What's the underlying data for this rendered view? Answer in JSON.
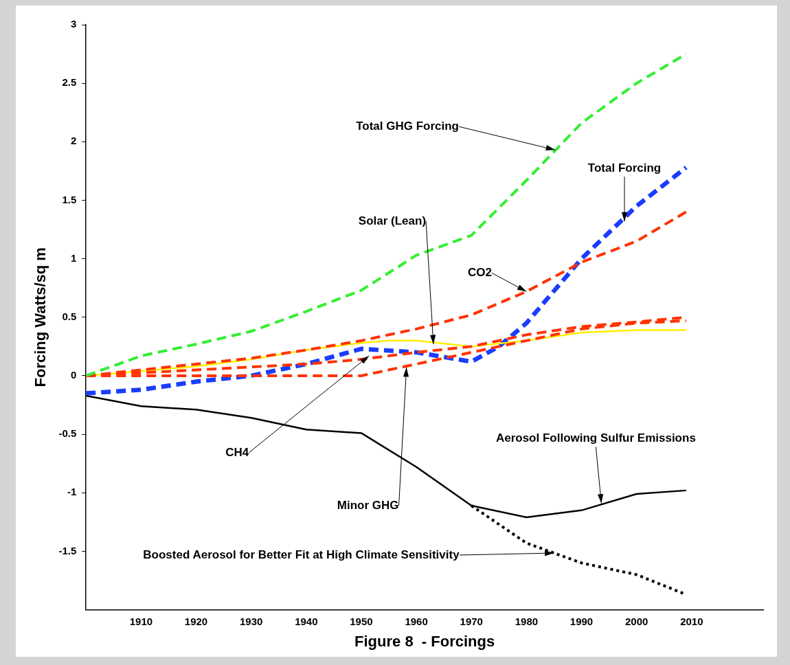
{
  "chart_data": {
    "type": "line",
    "xlabel": "Figure 8  - Forcings",
    "ylabel": "Forcing Watts/sq m",
    "xlim": [
      1900,
      2023
    ],
    "xticks": [
      1910,
      1920,
      1930,
      1940,
      1950,
      1960,
      1970,
      1980,
      1990,
      2000,
      2010
    ],
    "ylim": [
      -2,
      3
    ],
    "yticks": [
      -1.5,
      -1,
      -0.5,
      0,
      0.5,
      1,
      1.5,
      2,
      2.5,
      3
    ],
    "grid": false,
    "legend": false,
    "marker": "none",
    "series": [
      {
        "color": "#33ee33",
        "line_style": "dashed",
        "x": [
          1900,
          1910,
          1920,
          1930,
          1940,
          1950,
          1960,
          1970,
          1980,
          1990,
          2000,
          2009
        ],
        "values": [
          0,
          0.17,
          0.27,
          0.38,
          0.55,
          0.73,
          1.03,
          1.2,
          1.67,
          2.16,
          2.5,
          2.75
        ]
      },
      {
        "color": "#ff3300",
        "line_style": "dashed",
        "x": [
          1900,
          1910,
          1920,
          1930,
          1940,
          1950,
          1960,
          1970,
          1980,
          1990,
          2000,
          2009
        ],
        "values": [
          0,
          0.05,
          0.1,
          0.15,
          0.22,
          0.3,
          0.4,
          0.52,
          0.72,
          0.97,
          1.15,
          1.4
        ]
      },
      {
        "color": "#ff3300",
        "line_style": "dashed",
        "x": [
          1900,
          1920,
          1940,
          1950,
          1960,
          1970,
          1980,
          1990,
          2000,
          2009
        ],
        "values": [
          0,
          0.05,
          0.1,
          0.14,
          0.2,
          0.25,
          0.35,
          0.42,
          0.46,
          0.5
        ]
      },
      {
        "color": "#ff3300",
        "line_style": "dashed",
        "x": [
          1900,
          1950,
          1960,
          1970,
          1980,
          1990,
          2000,
          2009
        ],
        "values": [
          0,
          0,
          0.1,
          0.2,
          0.3,
          0.4,
          0.45,
          0.47
        ]
      },
      {
        "color": "#ffee00",
        "line_style": "solid",
        "x": [
          1900,
          1910,
          1920,
          1930,
          1940,
          1950,
          1955,
          1960,
          1970,
          1980,
          1990,
          2000,
          2009
        ],
        "values": [
          0,
          0.04,
          0.08,
          0.14,
          0.22,
          0.28,
          0.3,
          0.3,
          0.25,
          0.3,
          0.37,
          0.39,
          0.39
        ]
      },
      {
        "color": "#1a3cff",
        "line_style": "dashed",
        "x": [
          1900,
          1910,
          1920,
          1930,
          1940,
          1950,
          1960,
          1970,
          1975,
          1980,
          1990,
          2000,
          2009
        ],
        "values": [
          -0.15,
          -0.12,
          -0.05,
          0,
          0.1,
          0.23,
          0.2,
          0.12,
          0.25,
          0.45,
          1,
          1.45,
          1.78
        ]
      },
      {
        "color": "#000000",
        "line_style": "solid",
        "x": [
          1900,
          1910,
          1920,
          1930,
          1940,
          1950,
          1960,
          1970,
          1980,
          1990,
          2000,
          2009
        ],
        "values": [
          -0.17,
          -0.26,
          -0.29,
          -0.36,
          -0.46,
          -0.49,
          -0.78,
          -1.11,
          -1.21,
          -1.15,
          -1.01,
          -0.98
        ]
      },
      {
        "color": "#000000",
        "line_style": "dotted",
        "x": [
          1970,
          1980,
          1990,
          2000,
          2009
        ],
        "values": [
          -1.11,
          -1.43,
          -1.6,
          -1.7,
          -1.87
        ]
      }
    ],
    "annotations": [
      {
        "text": "Total GHG Forcing",
        "x": 1985.2,
        "y": 1.93
      },
      {
        "text": "Total Forcing",
        "x": 1997.8,
        "y": 1.32
      },
      {
        "text": "Solar (Lean)",
        "x": 1963.1,
        "y": 0.27
      },
      {
        "text": "CO2",
        "x": 1980,
        "y": 0.72
      },
      {
        "text": "CH4",
        "x": 1951.4,
        "y": 0.17
      },
      {
        "text": "Minor GHG",
        "x": 1958.2,
        "y": 0.07
      },
      {
        "text": "Aerosol Following Sulfur Emissions",
        "x": 1993.6,
        "y": -1.09
      },
      {
        "text": "Boosted Aerosol for Better Fit at High Climate Sensitivity",
        "x": 1985,
        "y": -1.515
      }
    ]
  }
}
